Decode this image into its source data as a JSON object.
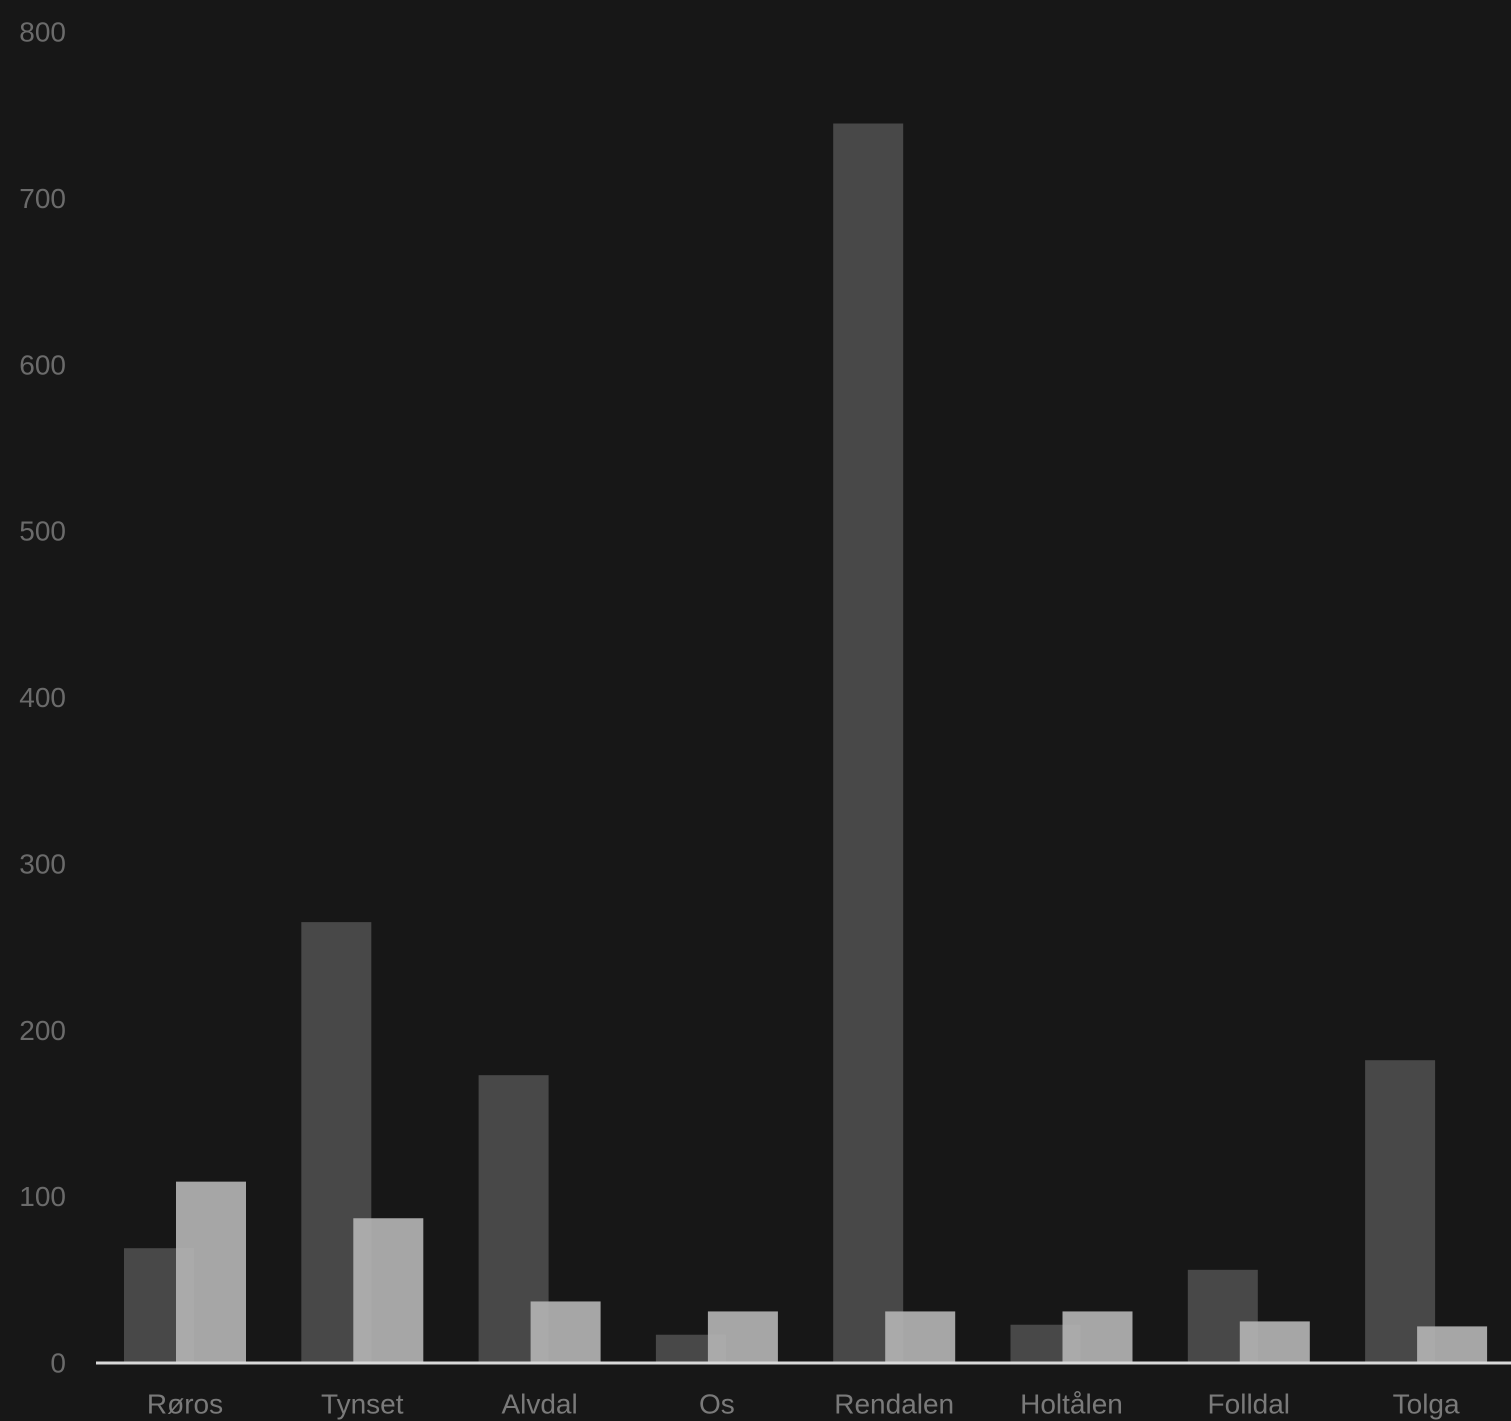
{
  "chart_data": {
    "type": "bar",
    "categories": [
      "Røros",
      "Tynset",
      "Alvdal",
      "Os",
      "Rendalen",
      "Holtålen",
      "Folldal",
      "Tolga"
    ],
    "series": [
      {
        "values": [
          69,
          265,
          173,
          17,
          745,
          23,
          56,
          182
        ],
        "color": "#484848"
      },
      {
        "values": [
          109,
          87,
          37,
          31,
          31,
          31,
          25,
          22
        ],
        "color": "#b3b3b3"
      }
    ],
    "y_ticks": [
      "0",
      "100",
      "200",
      "300",
      "400",
      "500",
      "600",
      "700",
      "800"
    ],
    "ylim": [
      0,
      800
    ],
    "grid": false,
    "legend": "none",
    "colors": {
      "background": "#171717",
      "axis": "#d9d9d9",
      "tick_text": "#6b6b6b",
      "category_text": "#7a7a7a"
    }
  }
}
